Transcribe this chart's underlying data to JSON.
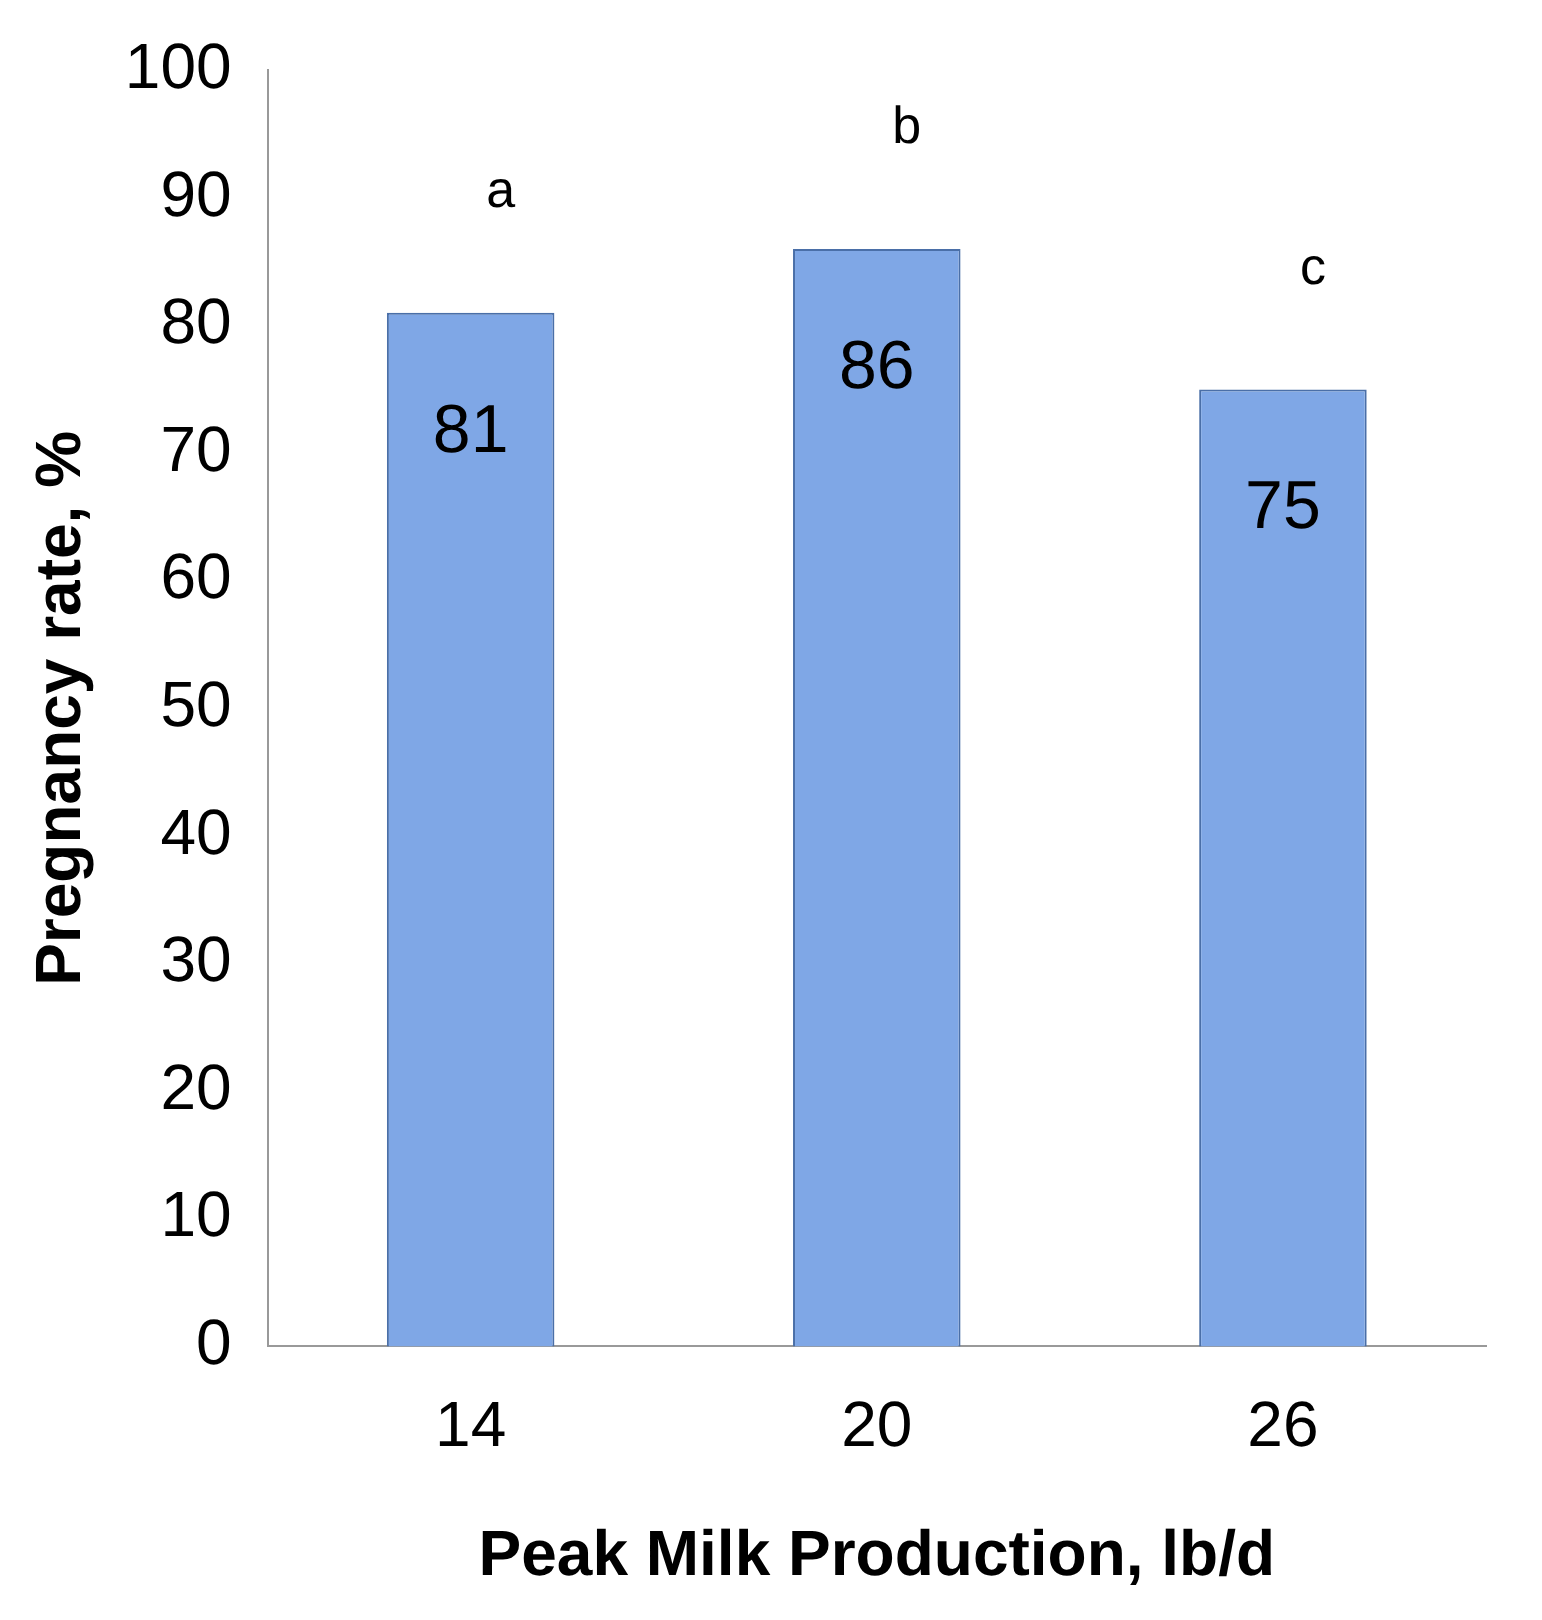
{
  "chart_data": {
    "type": "bar",
    "xlabel": "Peak Milk Production, lb/d",
    "ylabel": "Pregnancy rate, %",
    "categories": [
      "14",
      "20",
      "26"
    ],
    "values": [
      81,
      86,
      75
    ],
    "color": "#7fa7e6",
    "ylim": [
      0,
      100
    ],
    "yticks": [
      0,
      10,
      20,
      30,
      40,
      50,
      60,
      70,
      80,
      90,
      100
    ],
    "grid": false,
    "legend": false,
    "data_labels": true,
    "annotations": [
      "a",
      "b",
      "c"
    ]
  }
}
